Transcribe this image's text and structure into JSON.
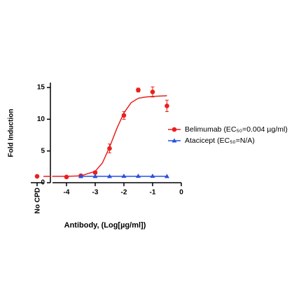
{
  "chart_data": {
    "type": "dose-response",
    "xlabel": "Antibody, (Log[µg/ml])",
    "ylabel": "Fold Induction",
    "control_label": "No CPD",
    "xlim": [
      -4.5,
      0
    ],
    "xticks": [
      -4,
      -3,
      -2,
      -1,
      0
    ],
    "ylim": [
      0,
      15
    ],
    "yticks": [
      0,
      5,
      10,
      15
    ],
    "series": [
      {
        "name": "Belimumab (EC₅₀=0.004 µg/ml)",
        "color": "#e8201f",
        "marker": "circle",
        "control_value": 1.0,
        "x": [
          -4,
          -3.5,
          -3,
          -2.5,
          -2,
          -1.5,
          -1,
          -0.5
        ],
        "values": [
          0.9,
          1.1,
          1.6,
          5.4,
          10.6,
          14.6,
          14.3,
          12.1
        ],
        "errors": [
          0.1,
          0.2,
          0.2,
          0.7,
          0.6,
          0.3,
          0.8,
          0.9
        ],
        "fit_x": [
          -4.5,
          -4,
          -3.5,
          -3,
          -2.75,
          -2.5,
          -2.25,
          -2,
          -1.75,
          -1.5,
          -1.25,
          -1,
          -0.5
        ],
        "fit_values": [
          1.0,
          1.0,
          1.08,
          1.8,
          3.1,
          5.6,
          8.5,
          11.0,
          12.6,
          13.3,
          13.5,
          13.6,
          13.7
        ]
      },
      {
        "name": "Atacicept (EC₅₀=N/A)",
        "color": "#2a4fe0",
        "marker": "triangle",
        "x": [
          -3.5,
          -3,
          -2.5,
          -2,
          -1.5,
          -1,
          -0.5
        ],
        "values": [
          1.0,
          1.0,
          1.0,
          1.05,
          1.05,
          1.05,
          1.0
        ],
        "fit_x": [
          -3.5,
          -0.5
        ],
        "fit_values": [
          1.0,
          1.0
        ]
      }
    ]
  }
}
